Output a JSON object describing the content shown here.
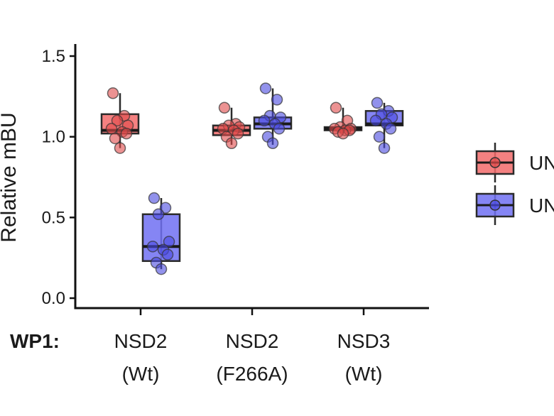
{
  "chart_data": {
    "type": "box",
    "ylabel": "Relative mBU",
    "ylim": [
      0,
      1.55
    ],
    "yticks": [
      0.0,
      0.5,
      1.0,
      1.5
    ],
    "ytick_labels": [
      "0.0",
      "0.5",
      "1.0",
      "1.5"
    ],
    "row_label": "WP1:",
    "categories": [
      {
        "line1": "NSD2",
        "line2": "(Wt)"
      },
      {
        "line1": "NSD2",
        "line2": "(F266A)"
      },
      {
        "line1": "NSD3",
        "line2": "(Wt)"
      }
    ],
    "legend_position": "right",
    "series": [
      {
        "name": "UN",
        "color": "#f26b6b",
        "point_color": "#e04a4a",
        "boxes": [
          {
            "q1": 1.02,
            "median": 1.04,
            "q3": 1.14,
            "whisker_low": 0.93,
            "whisker_high": 1.27,
            "points": [
              1.27,
              1.13,
              1.1,
              1.07,
              1.05,
              1.03,
              1.02,
              0.99,
              0.93
            ]
          },
          {
            "q1": 1.01,
            "median": 1.04,
            "q3": 1.07,
            "whisker_low": 0.95,
            "whisker_high": 1.18,
            "points": [
              1.18,
              1.08,
              1.07,
              1.06,
              1.05,
              1.04,
              1.02,
              1.0,
              0.96
            ]
          },
          {
            "q1": 1.04,
            "median": 1.05,
            "q3": 1.06,
            "whisker_low": 1.02,
            "whisker_high": 1.18,
            "points": [
              1.18,
              1.1,
              1.06,
              1.05,
              1.05,
              1.04,
              1.04,
              1.03,
              1.02
            ]
          }
        ]
      },
      {
        "name": "UN",
        "color": "#7070f2",
        "point_color": "#4a4ae0",
        "boxes": [
          {
            "q1": 0.23,
            "median": 0.32,
            "q3": 0.52,
            "whisker_low": 0.18,
            "whisker_high": 0.62,
            "points": [
              0.62,
              0.56,
              0.52,
              0.35,
              0.32,
              0.3,
              0.27,
              0.22,
              0.18
            ]
          },
          {
            "q1": 1.05,
            "median": 1.08,
            "q3": 1.12,
            "whisker_low": 0.95,
            "whisker_high": 1.3,
            "points": [
              1.3,
              1.23,
              1.13,
              1.12,
              1.1,
              1.08,
              1.05,
              1.0,
              0.96
            ]
          },
          {
            "q1": 1.07,
            "median": 1.08,
            "q3": 1.16,
            "whisker_low": 0.93,
            "whisker_high": 1.21,
            "points": [
              1.21,
              1.16,
              1.14,
              1.12,
              1.1,
              1.08,
              1.05,
              1.0,
              0.93
            ]
          }
        ]
      }
    ]
  }
}
